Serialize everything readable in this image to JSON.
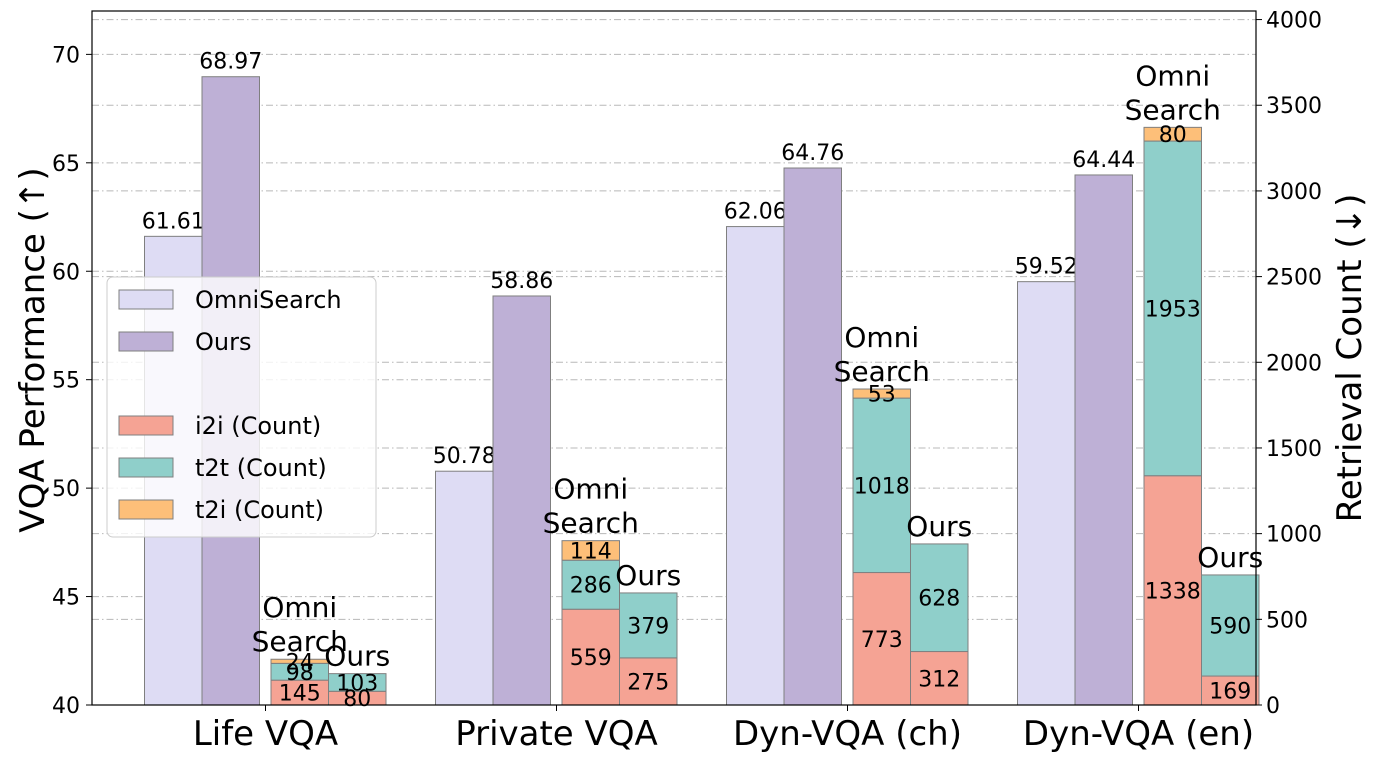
{
  "chart_data": {
    "type": "bar",
    "categories": [
      "Life VQA",
      "Private VQA",
      "Dyn-VQA (ch)",
      "Dyn-VQA (en)"
    ],
    "left_axis": {
      "label": "VQA Performance (↑)",
      "ylim": [
        40,
        72
      ],
      "ticks": [
        40,
        45,
        50,
        55,
        60,
        65,
        70
      ]
    },
    "right_axis": {
      "label": "Retrieval Count (↓)",
      "ylim": [
        0,
        4050
      ],
      "ticks": [
        0,
        500,
        1000,
        1500,
        2000,
        2500,
        3000,
        3500,
        4000
      ]
    },
    "performance_series": [
      {
        "name": "OmniSearch",
        "color": "#dedcf4",
        "values": [
          61.61,
          50.78,
          62.06,
          59.52
        ],
        "labels": [
          "61.61",
          "50.78",
          "62.06",
          "59.52"
        ]
      },
      {
        "name": "Ours",
        "color": "#beb0d6",
        "values": [
          68.97,
          58.86,
          64.76,
          64.44
        ],
        "labels": [
          "68.97",
          "58.86",
          "64.76",
          "64.44"
        ]
      }
    ],
    "count_groups": [
      {
        "name": "OmniSearch",
        "label_lines": [
          "Omni",
          "Search"
        ]
      },
      {
        "name": "Ours",
        "label_lines": [
          "Ours"
        ]
      }
    ],
    "count_series": [
      {
        "name": "i2i (Count)",
        "color": "#f5a394",
        "values": [
          [
            145,
            80
          ],
          [
            559,
            275
          ],
          [
            773,
            312
          ],
          [
            1338,
            169
          ]
        ],
        "labels": [
          [
            "145",
            "80"
          ],
          [
            "559",
            "275"
          ],
          [
            "773",
            "312"
          ],
          [
            "1338",
            "169"
          ]
        ]
      },
      {
        "name": "t2t (Count)",
        "color": "#8fcfca",
        "values": [
          [
            98,
            103
          ],
          [
            286,
            379
          ],
          [
            1018,
            628
          ],
          [
            1953,
            590
          ]
        ],
        "labels": [
          [
            "98",
            "103"
          ],
          [
            "286",
            "379"
          ],
          [
            "1018",
            "628"
          ],
          [
            "1953",
            "590"
          ]
        ]
      },
      {
        "name": "t2i (Count)",
        "color": "#fdbf79",
        "values": [
          [
            24,
            0
          ],
          [
            114,
            0
          ],
          [
            53,
            0
          ],
          [
            80,
            0
          ]
        ],
        "labels": [
          [
            "24",
            ""
          ],
          [
            "114",
            ""
          ],
          [
            "53",
            ""
          ],
          [
            "80",
            ""
          ]
        ]
      }
    ],
    "legend": {
      "position": "left-middle",
      "entries": [
        "OmniSearch",
        "Ours",
        "i2i (Count)",
        "t2t (Count)",
        "t2i (Count)"
      ]
    },
    "grid": "horizontal dash-dot"
  }
}
